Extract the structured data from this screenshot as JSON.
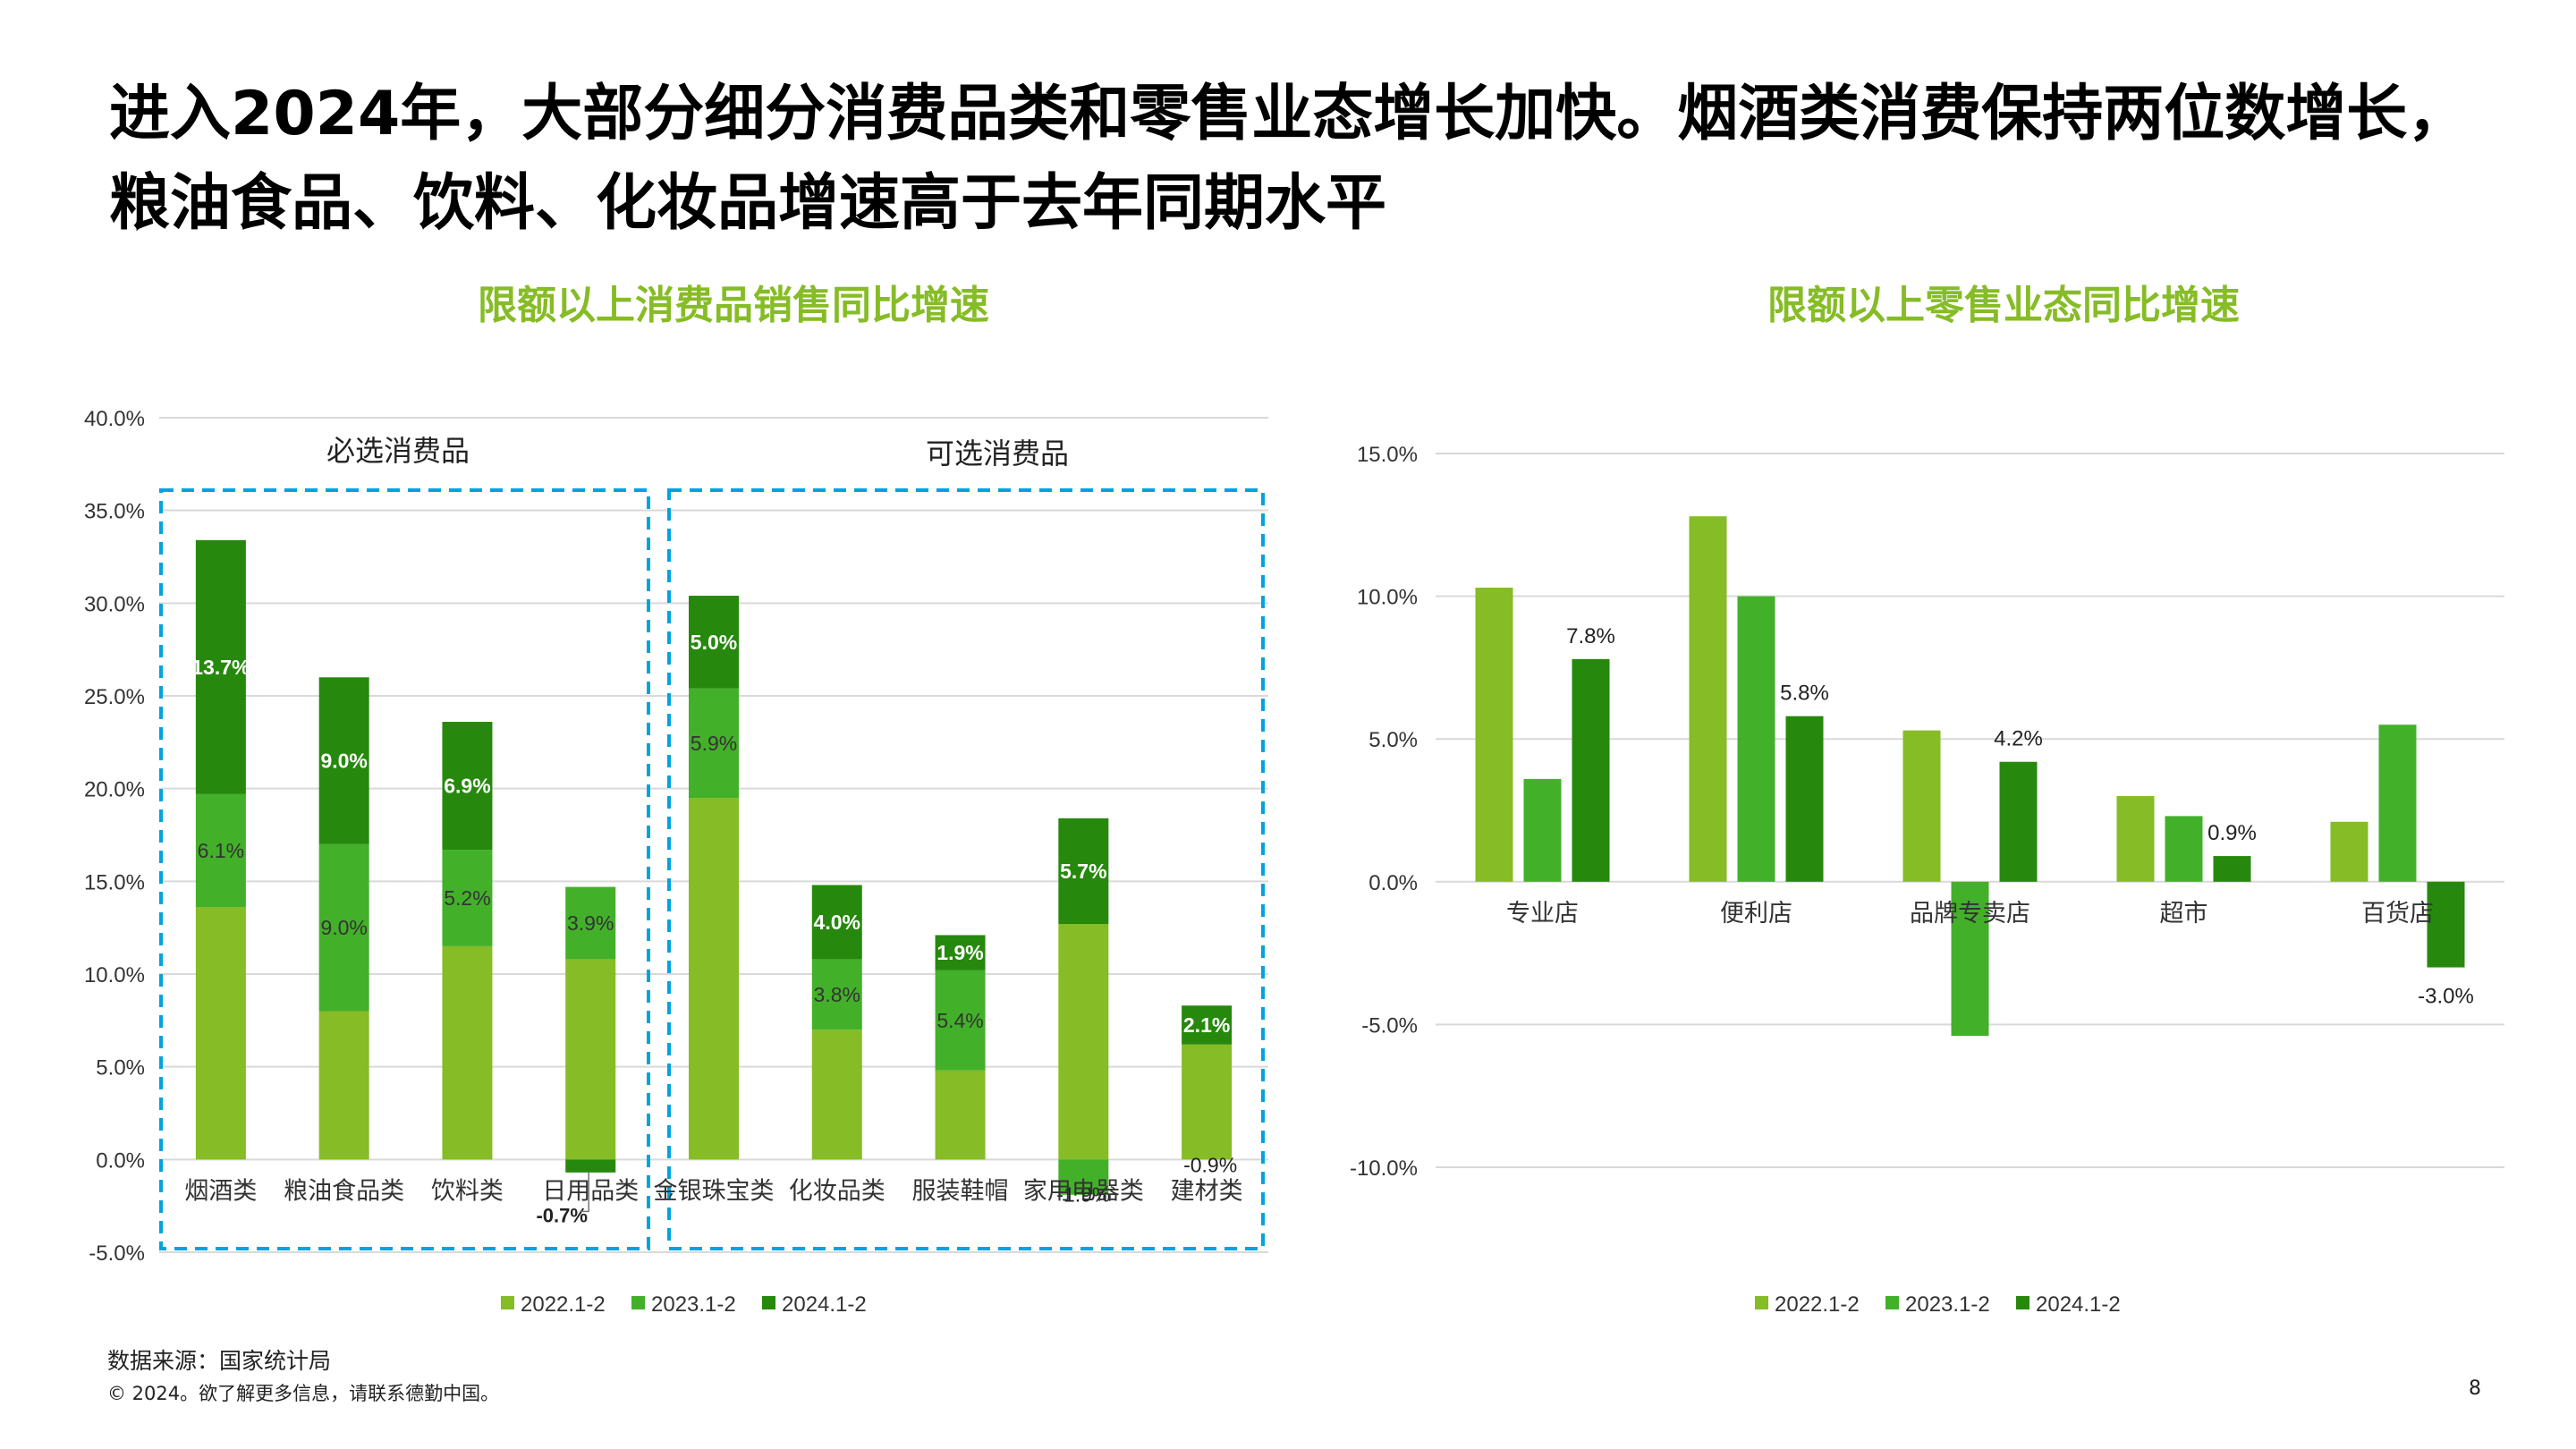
{
  "title": "进入2024年，大部分细分消费品类和零售业态增长加快。烟酒类消费保持两位数增长，粮油食品、饮料、化妆品增速高于去年同期水平",
  "footer": {
    "source": "数据来源：国家统计局",
    "copyright": "© 2024。欲了解更多信息，请联系德勤中国。",
    "page": "8"
  },
  "colors": {
    "s2022": "#86bc25",
    "s2023": "#43b02a",
    "s2024": "#26890d",
    "box": "#00a3e0",
    "grid": "#d9d9d9"
  },
  "chart_data": [
    {
      "type": "bar",
      "stacked": true,
      "title": "限额以上消费品销售同比增速",
      "groups": [
        {
          "label": "必选消费品",
          "categories": [
            "烟酒类",
            "粮油食品类",
            "饮料类",
            "日用品类"
          ]
        },
        {
          "label": "可选消费品",
          "categories": [
            "金银珠宝类",
            "化妆品类",
            "服装鞋帽",
            "家用电器类",
            "建材类"
          ]
        }
      ],
      "categories": [
        "烟酒类",
        "粮油食品类",
        "饮料类",
        "日用品类",
        "金银珠宝类",
        "化妆品类",
        "服装鞋帽",
        "家用电器类",
        "建材类"
      ],
      "series": [
        {
          "name": "2022.1-2",
          "values": [
            13.6,
            8.0,
            11.5,
            10.8,
            19.5,
            7.0,
            4.8,
            12.7,
            6.2
          ]
        },
        {
          "name": "2023.1-2",
          "values": [
            6.1,
            9.0,
            5.2,
            3.9,
            5.9,
            3.8,
            5.4,
            -1.9,
            0.0
          ]
        },
        {
          "name": "2024.1-2",
          "values": [
            13.7,
            9.0,
            6.9,
            -0.7,
            5.0,
            4.0,
            1.9,
            5.7,
            2.1
          ]
        }
      ],
      "labels": [
        [
          "",
          "",
          "",
          "",
          "",
          "",
          "",
          "",
          ""
        ],
        [
          "6.1%",
          "9.0%",
          "5.2%",
          "3.9%",
          "5.9%",
          "3.8%",
          "5.4%",
          "-1.9%",
          ""
        ],
        [
          "13.7%",
          "9.0%",
          "6.9%",
          "-0.7%",
          "5.0%",
          "4.0%",
          "1.9%",
          "5.7%",
          "2.1%"
        ]
      ],
      "extra_label": "-0.9%",
      "yticks": [
        -5,
        0,
        5,
        10,
        15,
        20,
        25,
        30,
        35,
        40
      ],
      "ytick_labels": [
        "-5.0%",
        "0.0%",
        "5.0%",
        "10.0%",
        "15.0%",
        "20.0%",
        "25.0%",
        "30.0%",
        "35.0%",
        "40.0%"
      ],
      "ylim": [
        -5,
        40
      ],
      "legend": [
        "2022.1-2",
        "2023.1-2",
        "2024.1-2"
      ]
    },
    {
      "type": "bar",
      "stacked": false,
      "title": "限额以上零售业态同比增速",
      "categories": [
        "专业店",
        "便利店",
        "品牌专卖店",
        "超市",
        "百货店"
      ],
      "series": [
        {
          "name": "2022.1-2",
          "values": [
            10.3,
            12.8,
            5.3,
            3.0,
            2.1
          ]
        },
        {
          "name": "2023.1-2",
          "values": [
            3.6,
            10.0,
            -5.4,
            2.3,
            5.5
          ]
        },
        {
          "name": "2024.1-2",
          "values": [
            7.8,
            5.8,
            4.2,
            0.9,
            -3.0
          ]
        }
      ],
      "labels": [
        "7.8%",
        "5.8%",
        "4.2%",
        "0.9%",
        "-3.0%"
      ],
      "yticks": [
        -10,
        -5,
        0,
        5,
        10,
        15
      ],
      "ytick_labels": [
        "-10.0%",
        "-5.0%",
        "0.0%",
        "5.0%",
        "10.0%",
        "15.0%"
      ],
      "ylim": [
        -10,
        15
      ],
      "legend": [
        "2022.1-2",
        "2023.1-2",
        "2024.1-2"
      ]
    }
  ]
}
